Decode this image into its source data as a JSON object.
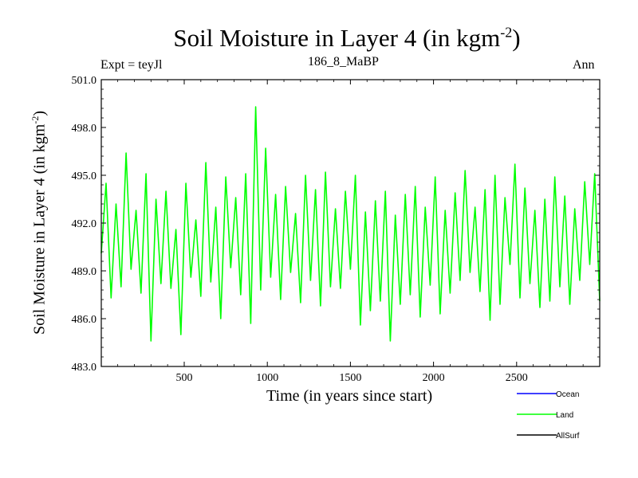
{
  "chart_data": {
    "type": "line",
    "title": "Soil Moisture in Layer 4 (in kgm",
    "title_sup": "-2",
    "title_suffix": ")",
    "left_label": "Expt = teyJl",
    "center_label": "186_8_MaBP",
    "right_label": "Ann",
    "xlabel": "Time (in years since start)",
    "ylabel": "Soil Moisture in Layer 4 (in kgm",
    "ylabel_sup": "-2",
    "ylabel_suffix": ")",
    "xlim": [
      1,
      3000
    ],
    "ylim": [
      483.0,
      501.0
    ],
    "x_ticks": [
      500,
      1000,
      1500,
      2000,
      2500
    ],
    "x_tick_labels": [
      "500",
      "1000",
      "1500",
      "2000",
      "2500"
    ],
    "y_ticks": [
      483.0,
      486.0,
      489.0,
      492.0,
      495.0,
      498.0,
      501.0
    ],
    "y_tick_labels": [
      "483.0",
      "486.0",
      "489.0",
      "492.0",
      "495.0",
      "498.0",
      "501.0"
    ],
    "series": [
      {
        "name": "Ocean",
        "color": "#0000ff",
        "values": []
      },
      {
        "name": "Land",
        "color": "#00ff00",
        "x": [
          1,
          30,
          60,
          90,
          120,
          150,
          180,
          210,
          240,
          270,
          300,
          330,
          360,
          390,
          420,
          450,
          480,
          510,
          540,
          570,
          600,
          630,
          660,
          690,
          720,
          750,
          780,
          810,
          840,
          870,
          900,
          930,
          960,
          990,
          1020,
          1050,
          1080,
          1110,
          1140,
          1170,
          1200,
          1230,
          1260,
          1290,
          1320,
          1350,
          1380,
          1410,
          1440,
          1470,
          1500,
          1530,
          1560,
          1590,
          1620,
          1650,
          1680,
          1710,
          1740,
          1770,
          1800,
          1830,
          1860,
          1890,
          1920,
          1950,
          1980,
          2010,
          2040,
          2070,
          2100,
          2130,
          2160,
          2190,
          2220,
          2250,
          2280,
          2310,
          2340,
          2370,
          2400,
          2430,
          2460,
          2490,
          2520,
          2550,
          2580,
          2610,
          2640,
          2670,
          2700,
          2730,
          2760,
          2790,
          2820,
          2850,
          2880,
          2910,
          2940,
          2970,
          3000
        ],
        "values": [
          490.1,
          494.5,
          487.3,
          493.2,
          488.0,
          496.4,
          489.1,
          492.8,
          487.6,
          495.1,
          484.6,
          493.5,
          488.2,
          494.0,
          487.9,
          491.6,
          485.0,
          494.5,
          488.6,
          492.2,
          487.4,
          495.8,
          488.3,
          493.0,
          486.0,
          494.9,
          489.2,
          493.6,
          487.5,
          495.1,
          485.7,
          499.3,
          487.8,
          496.7,
          488.6,
          493.8,
          487.2,
          494.3,
          488.9,
          492.6,
          487.0,
          495.0,
          488.4,
          494.1,
          486.8,
          495.2,
          488.0,
          492.9,
          487.9,
          494.0,
          489.1,
          495.0,
          485.6,
          492.7,
          486.5,
          493.4,
          487.1,
          494.0,
          484.6,
          492.5,
          486.9,
          493.8,
          487.5,
          494.3,
          486.1,
          493.0,
          488.1,
          494.9,
          486.3,
          492.8,
          487.6,
          493.9,
          488.4,
          495.3,
          488.9,
          493.0,
          487.7,
          494.1,
          485.9,
          495.0,
          486.9,
          493.6,
          489.4,
          495.7,
          487.3,
          494.2,
          488.2,
          492.8,
          486.7,
          493.5,
          487.1,
          494.9,
          488.0,
          493.7,
          486.9,
          492.9,
          488.4,
          494.6,
          489.4,
          495.1,
          487.1
        ]
      },
      {
        "name": "AllSurf",
        "color": "#000000",
        "values": []
      }
    ],
    "grid": false,
    "legend_position": "bottom-right"
  }
}
